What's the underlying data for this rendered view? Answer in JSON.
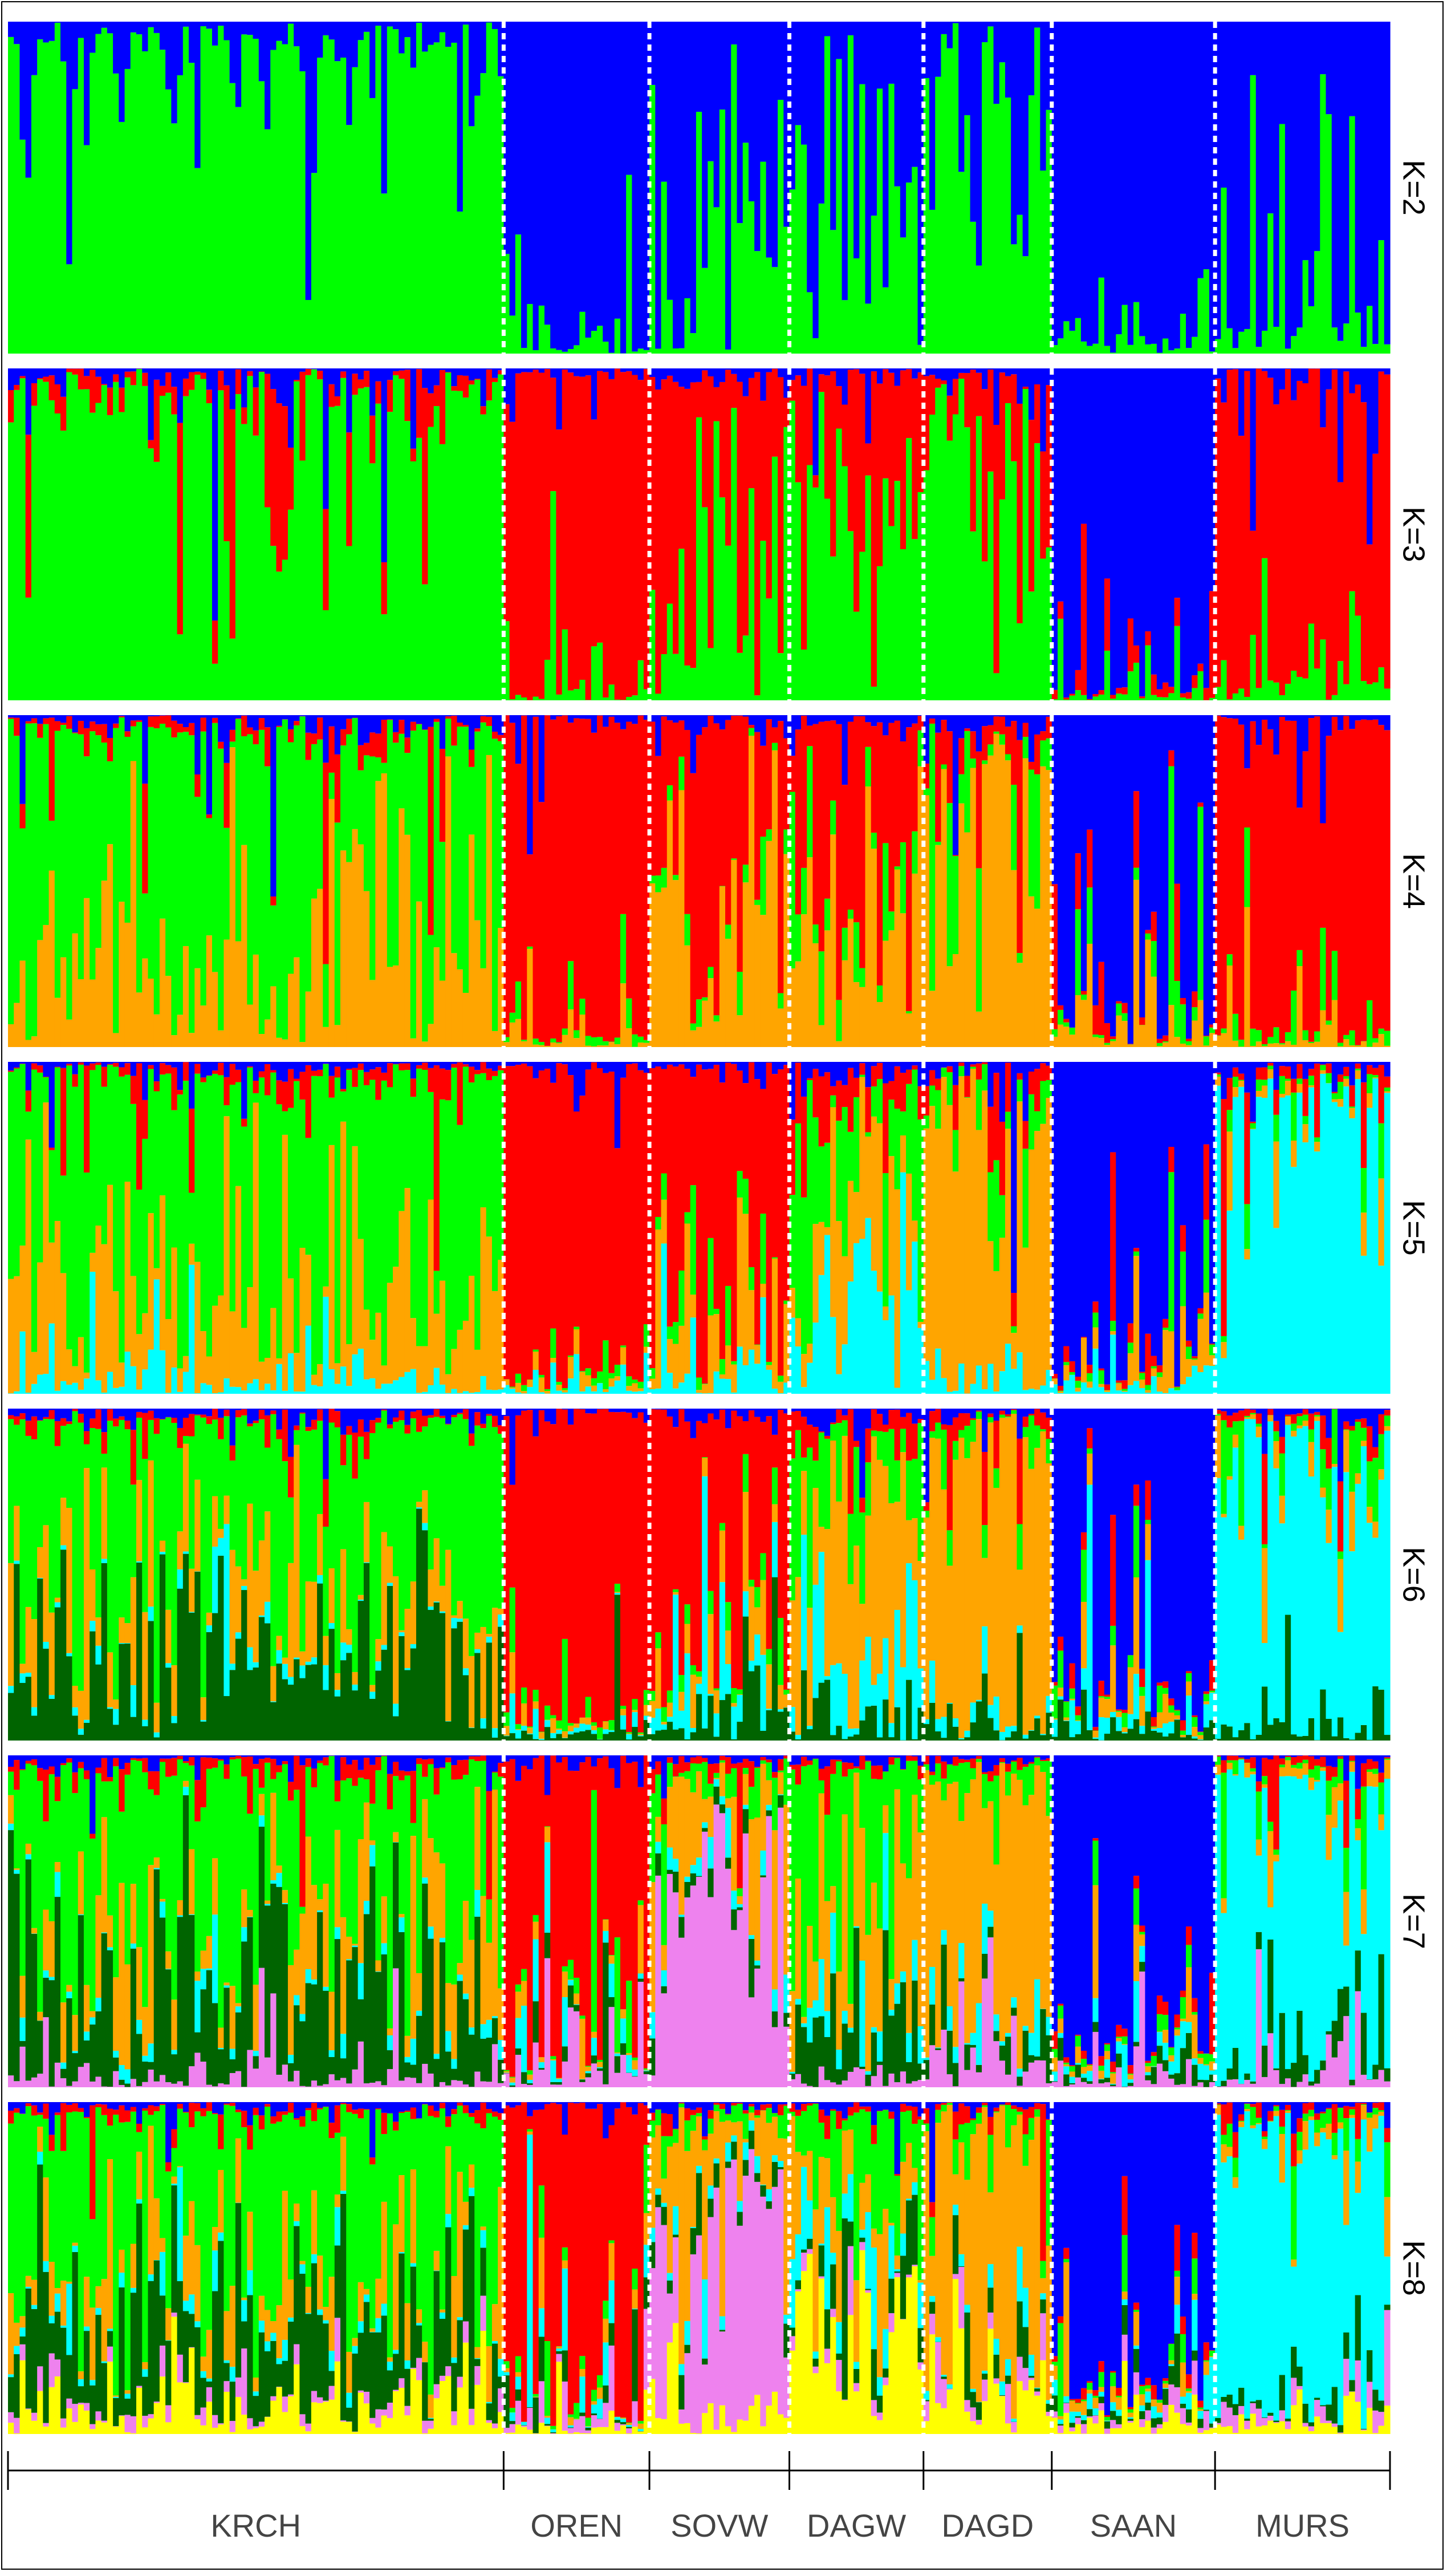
{
  "chart_data": {
    "type": "bar",
    "subtype": "stacked-admixture-bar",
    "title": "",
    "xlabel": "",
    "ylabel": "",
    "ylim": [
      0,
      1
    ],
    "grid": false,
    "legend": "none",
    "populations": [
      {
        "name": "KRCH",
        "n": 85
      },
      {
        "name": "OREN",
        "n": 25
      },
      {
        "name": "SOVW",
        "n": 24
      },
      {
        "name": "DAGW",
        "n": 23
      },
      {
        "name": "DAGD",
        "n": 22
      },
      {
        "name": "SAAN",
        "n": 28
      },
      {
        "name": "MURS",
        "n": 30
      }
    ],
    "cluster_colors": {
      "green": "#00ff00",
      "blue": "#0000ff",
      "red": "#ff0000",
      "orange": "#ffa500",
      "cyan": "#00ffff",
      "darkgreen": "#006400",
      "pink": "#ee82ee",
      "yellow": "#ffff00"
    },
    "panels": [
      {
        "label": "K=2",
        "clusters": [
          "green",
          "blue"
        ],
        "mean_ancestry": {
          "KRCH": {
            "green": 0.95,
            "blue": 0.05
          },
          "OREN": {
            "green": 0.06,
            "blue": 0.94
          },
          "SOVW": {
            "green": 0.35,
            "blue": 0.65
          },
          "DAGW": {
            "green": 0.55,
            "blue": 0.45
          },
          "DAGD": {
            "green": 0.85,
            "blue": 0.15
          },
          "SAAN": {
            "green": 0.04,
            "blue": 0.96
          },
          "MURS": {
            "green": 0.08,
            "blue": 0.92
          }
        }
      },
      {
        "label": "K=3",
        "clusters": [
          "green",
          "red",
          "blue"
        ],
        "mean_ancestry": {
          "KRCH": {
            "green": 0.93,
            "red": 0.04,
            "blue": 0.03
          },
          "OREN": {
            "green": 0.02,
            "red": 0.97,
            "blue": 0.01
          },
          "SOVW": {
            "green": 0.35,
            "red": 0.62,
            "blue": 0.03
          },
          "DAGW": {
            "green": 0.5,
            "red": 0.47,
            "blue": 0.03
          },
          "DAGD": {
            "green": 0.8,
            "red": 0.17,
            "blue": 0.03
          },
          "SAAN": {
            "green": 0.02,
            "red": 0.02,
            "blue": 0.96
          },
          "MURS": {
            "green": 0.04,
            "red": 0.94,
            "blue": 0.02
          }
        }
      },
      {
        "label": "K=4",
        "clusters": [
          "orange",
          "green",
          "red",
          "blue"
        ],
        "mean_ancestry": {
          "KRCH": {
            "orange": 0.3,
            "green": 0.64,
            "red": 0.03,
            "blue": 0.03
          },
          "OREN": {
            "orange": 0.02,
            "green": 0.02,
            "red": 0.94,
            "blue": 0.02
          },
          "SOVW": {
            "orange": 0.45,
            "green": 0.05,
            "red": 0.47,
            "blue": 0.03
          },
          "DAGW": {
            "orange": 0.4,
            "green": 0.1,
            "red": 0.47,
            "blue": 0.03
          },
          "DAGD": {
            "orange": 0.82,
            "green": 0.1,
            "red": 0.05,
            "blue": 0.03
          },
          "SAAN": {
            "orange": 0.04,
            "green": 0.02,
            "red": 0.02,
            "blue": 0.92
          },
          "MURS": {
            "orange": 0.03,
            "green": 0.03,
            "red": 0.91,
            "blue": 0.03
          }
        }
      },
      {
        "label": "K=5",
        "clusters": [
          "cyan",
          "orange",
          "green",
          "red",
          "blue"
        ],
        "mean_ancestry": {
          "KRCH": {
            "cyan": 0.03,
            "orange": 0.3,
            "green": 0.62,
            "red": 0.03,
            "blue": 0.02
          },
          "OREN": {
            "cyan": 0.02,
            "orange": 0.02,
            "green": 0.02,
            "red": 0.92,
            "blue": 0.02
          },
          "SOVW": {
            "cyan": 0.04,
            "orange": 0.22,
            "green": 0.04,
            "red": 0.67,
            "blue": 0.03
          },
          "DAGW": {
            "cyan": 0.3,
            "orange": 0.28,
            "green": 0.3,
            "red": 0.09,
            "blue": 0.03
          },
          "DAGD": {
            "cyan": 0.04,
            "orange": 0.8,
            "green": 0.08,
            "red": 0.05,
            "blue": 0.03
          },
          "SAAN": {
            "cyan": 0.04,
            "orange": 0.03,
            "green": 0.02,
            "red": 0.02,
            "blue": 0.89
          },
          "MURS": {
            "cyan": 0.88,
            "orange": 0.03,
            "green": 0.03,
            "red": 0.03,
            "blue": 0.03
          }
        }
      },
      {
        "label": "K=6",
        "clusters": [
          "darkgreen",
          "cyan",
          "orange",
          "green",
          "red",
          "blue"
        ],
        "mean_ancestry": {
          "KRCH": {
            "darkgreen": 0.3,
            "cyan": 0.02,
            "orange": 0.15,
            "green": 0.48,
            "red": 0.03,
            "blue": 0.02
          },
          "OREN": {
            "darkgreen": 0.02,
            "cyan": 0.02,
            "orange": 0.02,
            "green": 0.02,
            "red": 0.9,
            "blue": 0.02
          },
          "SOVW": {
            "darkgreen": 0.1,
            "cyan": 0.04,
            "orange": 0.12,
            "green": 0.04,
            "red": 0.67,
            "blue": 0.03
          },
          "DAGW": {
            "darkgreen": 0.06,
            "cyan": 0.15,
            "orange": 0.45,
            "green": 0.25,
            "red": 0.06,
            "blue": 0.03
          },
          "DAGD": {
            "darkgreen": 0.05,
            "cyan": 0.03,
            "orange": 0.8,
            "green": 0.06,
            "red": 0.04,
            "blue": 0.02
          },
          "SAAN": {
            "darkgreen": 0.02,
            "cyan": 0.03,
            "orange": 0.03,
            "green": 0.02,
            "red": 0.02,
            "blue": 0.88
          },
          "MURS": {
            "darkgreen": 0.03,
            "cyan": 0.87,
            "orange": 0.03,
            "green": 0.03,
            "red": 0.02,
            "blue": 0.02
          }
        }
      },
      {
        "label": "K=7",
        "clusters": [
          "pink",
          "darkgreen",
          "cyan",
          "orange",
          "green",
          "red",
          "blue"
        ],
        "mean_ancestry": {
          "KRCH": {
            "pink": 0.03,
            "darkgreen": 0.28,
            "cyan": 0.02,
            "orange": 0.15,
            "green": 0.47,
            "red": 0.03,
            "blue": 0.02
          },
          "OREN": {
            "pink": 0.05,
            "darkgreen": 0.01,
            "cyan": 0.03,
            "orange": 0.02,
            "green": 0.01,
            "red": 0.86,
            "blue": 0.02
          },
          "SOVW": {
            "pink": 0.6,
            "darkgreen": 0.04,
            "cyan": 0.04,
            "orange": 0.22,
            "green": 0.06,
            "red": 0.02,
            "blue": 0.02
          },
          "DAGW": {
            "pink": 0.02,
            "darkgreen": 0.15,
            "cyan": 0.1,
            "orange": 0.25,
            "green": 0.44,
            "red": 0.02,
            "blue": 0.02
          },
          "DAGD": {
            "pink": 0.08,
            "darkgreen": 0.05,
            "cyan": 0.03,
            "orange": 0.76,
            "green": 0.05,
            "red": 0.02,
            "blue": 0.01
          },
          "SAAN": {
            "pink": 0.02,
            "darkgreen": 0.02,
            "cyan": 0.03,
            "orange": 0.03,
            "green": 0.02,
            "red": 0.02,
            "blue": 0.86
          },
          "MURS": {
            "pink": 0.03,
            "darkgreen": 0.03,
            "cyan": 0.86,
            "orange": 0.03,
            "green": 0.02,
            "red": 0.02,
            "blue": 0.01
          }
        }
      },
      {
        "label": "K=8",
        "clusters": [
          "yellow",
          "pink",
          "darkgreen",
          "cyan",
          "orange",
          "green",
          "red",
          "blue"
        ],
        "mean_ancestry": {
          "KRCH": {
            "yellow": 0.08,
            "pink": 0.03,
            "darkgreen": 0.25,
            "cyan": 0.02,
            "orange": 0.12,
            "green": 0.46,
            "red": 0.02,
            "blue": 0.02
          },
          "OREN": {
            "yellow": 0.02,
            "pink": 0.03,
            "darkgreen": 0.01,
            "cyan": 0.03,
            "orange": 0.02,
            "green": 0.02,
            "red": 0.85,
            "blue": 0.02
          },
          "SOVW": {
            "yellow": 0.08,
            "pink": 0.55,
            "darkgreen": 0.04,
            "cyan": 0.04,
            "orange": 0.2,
            "green": 0.05,
            "red": 0.02,
            "blue": 0.02
          },
          "DAGW": {
            "yellow": 0.35,
            "pink": 0.02,
            "darkgreen": 0.12,
            "cyan": 0.1,
            "orange": 0.2,
            "green": 0.17,
            "red": 0.02,
            "blue": 0.02
          },
          "DAGD": {
            "yellow": 0.1,
            "pink": 0.06,
            "darkgreen": 0.04,
            "cyan": 0.03,
            "orange": 0.7,
            "green": 0.04,
            "red": 0.02,
            "blue": 0.01
          },
          "SAAN": {
            "yellow": 0.03,
            "pink": 0.02,
            "darkgreen": 0.02,
            "cyan": 0.03,
            "orange": 0.03,
            "green": 0.02,
            "red": 0.02,
            "blue": 0.83
          },
          "MURS": {
            "yellow": 0.03,
            "pink": 0.03,
            "darkgreen": 0.03,
            "cyan": 0.82,
            "orange": 0.03,
            "green": 0.02,
            "red": 0.02,
            "blue": 0.02
          }
        }
      }
    ]
  }
}
